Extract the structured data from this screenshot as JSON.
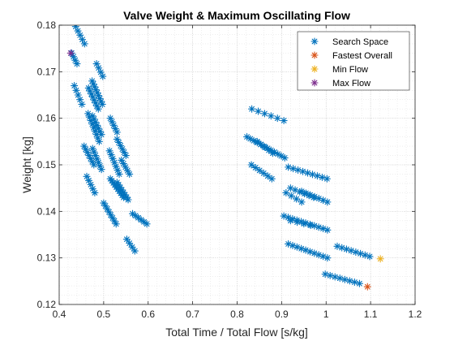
{
  "chart_data": {
    "type": "scatter",
    "title": "Valve Weight & Maximum Oscillating Flow",
    "xlabel": "Total Time / Total Flow [s/kg]",
    "ylabel": "Weight [kg]",
    "xlim": [
      0.4,
      1.2
    ],
    "ylim": [
      0.12,
      0.18
    ],
    "xticks": [
      0.4,
      0.5,
      0.6,
      0.7,
      0.8,
      0.9,
      1,
      1.1,
      1.2
    ],
    "yticks": [
      0.12,
      0.13,
      0.14,
      0.15,
      0.16,
      0.17,
      0.18
    ],
    "xtick_labels": [
      "0.4",
      "0.5",
      "0.6",
      "0.7",
      "0.8",
      "0.9",
      "1",
      "1.1",
      "1.2"
    ],
    "ytick_labels": [
      "0.12",
      "0.13",
      "0.14",
      "0.15",
      "0.16",
      "0.17",
      "0.18"
    ],
    "grid": "major and minor, dotted",
    "legend_position": "top-right",
    "series": [
      {
        "name": "Search Space",
        "color": "#0072BD",
        "marker": "asterisk",
        "clusters": [
          {
            "x0": 0.437,
            "y0": 0.1797,
            "x1": 0.457,
            "y1": 0.176,
            "n": 5
          },
          {
            "x0": 0.428,
            "y0": 0.174,
            "x1": 0.44,
            "y1": 0.1717,
            "n": 4
          },
          {
            "x0": 0.484,
            "y0": 0.1717,
            "x1": 0.498,
            "y1": 0.169,
            "n": 4
          },
          {
            "x0": 0.474,
            "y0": 0.168,
            "x1": 0.497,
            "y1": 0.163,
            "n": 9
          },
          {
            "x0": 0.466,
            "y0": 0.1665,
            "x1": 0.488,
            "y1": 0.162,
            "n": 8
          },
          {
            "x0": 0.434,
            "y0": 0.167,
            "x1": 0.451,
            "y1": 0.163,
            "n": 5
          },
          {
            "x0": 0.465,
            "y0": 0.161,
            "x1": 0.49,
            "y1": 0.155,
            "n": 9
          },
          {
            "x0": 0.475,
            "y0": 0.1605,
            "x1": 0.495,
            "y1": 0.1565,
            "n": 7
          },
          {
            "x0": 0.515,
            "y0": 0.16,
            "x1": 0.53,
            "y1": 0.157,
            "n": 5
          },
          {
            "x0": 0.53,
            "y0": 0.1555,
            "x1": 0.55,
            "y1": 0.152,
            "n": 6
          },
          {
            "x0": 0.456,
            "y0": 0.154,
            "x1": 0.478,
            "y1": 0.15,
            "n": 7
          },
          {
            "x0": 0.475,
            "y0": 0.1535,
            "x1": 0.495,
            "y1": 0.149,
            "n": 7
          },
          {
            "x0": 0.513,
            "y0": 0.153,
            "x1": 0.535,
            "y1": 0.148,
            "n": 7
          },
          {
            "x0": 0.54,
            "y0": 0.151,
            "x1": 0.558,
            "y1": 0.148,
            "n": 5
          },
          {
            "x0": 0.515,
            "y0": 0.147,
            "x1": 0.545,
            "y1": 0.143,
            "n": 10
          },
          {
            "x0": 0.53,
            "y0": 0.1462,
            "x1": 0.555,
            "y1": 0.1425,
            "n": 8
          },
          {
            "x0": 0.462,
            "y0": 0.1475,
            "x1": 0.48,
            "y1": 0.144,
            "n": 5
          },
          {
            "x0": 0.5,
            "y0": 0.1418,
            "x1": 0.528,
            "y1": 0.1373,
            "n": 8
          },
          {
            "x0": 0.565,
            "y0": 0.1395,
            "x1": 0.597,
            "y1": 0.1373,
            "n": 6
          },
          {
            "x0": 0.552,
            "y0": 0.134,
            "x1": 0.57,
            "y1": 0.1315,
            "n": 4
          },
          {
            "x0": 0.833,
            "y0": 0.162,
            "x1": 0.905,
            "y1": 0.1595,
            "n": 6
          },
          {
            "x0": 0.822,
            "y0": 0.156,
            "x1": 0.907,
            "y1": 0.1515,
            "n": 12
          },
          {
            "x0": 0.845,
            "y0": 0.155,
            "x1": 0.88,
            "y1": 0.1525,
            "n": 5
          },
          {
            "x0": 0.832,
            "y0": 0.15,
            "x1": 0.878,
            "y1": 0.147,
            "n": 6
          },
          {
            "x0": 0.915,
            "y0": 0.1495,
            "x1": 1.002,
            "y1": 0.147,
            "n": 9
          },
          {
            "x0": 0.92,
            "y0": 0.145,
            "x1": 0.972,
            "y1": 0.143,
            "n": 6
          },
          {
            "x0": 0.945,
            "y0": 0.1443,
            "x1": 1.003,
            "y1": 0.142,
            "n": 7
          },
          {
            "x0": 0.91,
            "y0": 0.144,
            "x1": 0.945,
            "y1": 0.142,
            "n": 4
          },
          {
            "x0": 0.905,
            "y0": 0.139,
            "x1": 1.003,
            "y1": 0.136,
            "n": 11
          },
          {
            "x0": 0.92,
            "y0": 0.138,
            "x1": 0.965,
            "y1": 0.137,
            "n": 4
          },
          {
            "x0": 0.915,
            "y0": 0.133,
            "x1": 1.003,
            "y1": 0.13,
            "n": 10
          },
          {
            "x0": 1.025,
            "y0": 0.1325,
            "x1": 1.098,
            "y1": 0.1303,
            "n": 8
          },
          {
            "x0": 0.998,
            "y0": 0.1265,
            "x1": 1.075,
            "y1": 0.1245,
            "n": 8
          }
        ]
      },
      {
        "name": "Fastest Overall",
        "color": "#D95319",
        "marker": "asterisk",
        "points": [
          {
            "x": 1.093,
            "y": 0.1238
          }
        ]
      },
      {
        "name": "Min Flow",
        "color": "#EDB120",
        "marker": "asterisk",
        "points": [
          {
            "x": 1.122,
            "y": 0.1298
          }
        ]
      },
      {
        "name": "Max Flow",
        "color": "#7E2F8E",
        "marker": "asterisk",
        "points": [
          {
            "x": 0.426,
            "y": 0.174
          }
        ]
      }
    ]
  }
}
